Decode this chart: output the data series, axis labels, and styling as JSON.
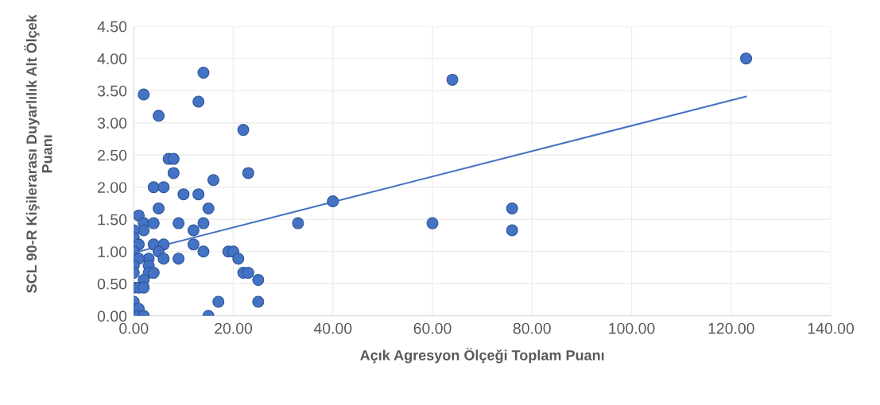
{
  "chart_data": {
    "type": "scatter",
    "xlabel": "Açık Agresyon Ölçeği Toplam Puanı",
    "ylabel": "SCL 90-R Kişilerarası Duyarlılık Alt Ölçek Puanı",
    "xlim": [
      0,
      140
    ],
    "ylim": [
      0,
      4.5
    ],
    "xticks": [
      {
        "value": 0,
        "label": "0.00"
      },
      {
        "value": 20,
        "label": "20.00"
      },
      {
        "value": 40,
        "label": "40.00"
      },
      {
        "value": 60,
        "label": "60.00"
      },
      {
        "value": 80,
        "label": "80.00"
      },
      {
        "value": 100,
        "label": "100.00"
      },
      {
        "value": 120,
        "label": "120.00"
      },
      {
        "value": 140,
        "label": "140.00"
      }
    ],
    "yticks": [
      {
        "value": 0,
        "label": "0.00"
      },
      {
        "value": 0.5,
        "label": "0.50"
      },
      {
        "value": 1,
        "label": "1.00"
      },
      {
        "value": 1.5,
        "label": "1.50"
      },
      {
        "value": 2,
        "label": "2.00"
      },
      {
        "value": 2.5,
        "label": "2.50"
      },
      {
        "value": 3,
        "label": "3.00"
      },
      {
        "value": 3.5,
        "label": "3.50"
      },
      {
        "value": 4,
        "label": "4.00"
      },
      {
        "value": 4.5,
        "label": "4.50"
      }
    ],
    "grid": true,
    "series": [
      {
        "marker": "circle",
        "color": "#4472c4",
        "x": [
          2,
          5,
          14,
          13,
          123,
          64,
          7,
          8,
          8,
          22,
          23,
          16,
          4,
          6,
          10,
          13,
          5,
          15,
          1,
          40,
          33,
          60,
          76,
          76,
          2,
          4,
          9,
          14,
          2,
          12,
          0,
          0,
          1,
          4,
          6,
          12,
          0,
          5,
          14,
          19,
          20,
          0,
          3,
          6,
          9,
          21,
          1,
          0,
          3,
          0,
          3,
          4,
          22,
          23,
          2,
          25,
          0,
          1,
          2,
          0,
          17,
          25,
          0,
          1,
          1,
          2,
          15
        ],
        "values": [
          3.44,
          3.11,
          3.78,
          3.33,
          4.0,
          3.67,
          2.44,
          2.44,
          2.22,
          2.89,
          2.22,
          2.11,
          2.0,
          2.0,
          1.89,
          1.89,
          1.67,
          1.67,
          1.56,
          1.78,
          1.44,
          1.44,
          1.67,
          1.33,
          1.44,
          1.44,
          1.44,
          1.44,
          1.33,
          1.33,
          1.33,
          1.22,
          1.11,
          1.11,
          1.11,
          1.11,
          1.0,
          1.0,
          1.0,
          1.0,
          1.0,
          0.89,
          0.89,
          0.89,
          0.89,
          0.89,
          0.89,
          0.78,
          0.78,
          0.67,
          0.67,
          0.67,
          0.67,
          0.67,
          0.56,
          0.56,
          0.44,
          0.44,
          0.44,
          0.22,
          0.22,
          0.22,
          0.11,
          0.11,
          0,
          0,
          0
        ]
      },
      {
        "type": "line",
        "color": "#4472c4",
        "x": [
          0,
          123
        ],
        "values": [
          0.98,
          3.41
        ]
      }
    ]
  }
}
